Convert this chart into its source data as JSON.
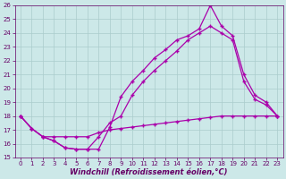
{
  "xlabel": "Windchill (Refroidissement éolien,°C)",
  "xlim": [
    -0.5,
    23.5
  ],
  "ylim": [
    15,
    26
  ],
  "xticks": [
    0,
    1,
    2,
    3,
    4,
    5,
    6,
    7,
    8,
    9,
    10,
    11,
    12,
    13,
    14,
    15,
    16,
    17,
    18,
    19,
    20,
    21,
    22,
    23
  ],
  "yticks": [
    15,
    16,
    17,
    18,
    19,
    20,
    21,
    22,
    23,
    24,
    25,
    26
  ],
  "background_color": "#cce8e8",
  "grid_color": "#aacccc",
  "line_color": "#aa00aa",
  "line1_x": [
    0,
    1,
    2,
    3,
    4,
    5,
    6,
    7,
    8,
    9,
    10,
    11,
    12,
    13,
    14,
    15,
    16,
    17,
    18,
    19,
    20,
    21,
    22,
    23
  ],
  "line1_y": [
    18.0,
    17.1,
    16.5,
    16.2,
    15.7,
    15.6,
    15.6,
    15.6,
    17.2,
    19.4,
    20.5,
    21.3,
    22.2,
    22.8,
    23.5,
    23.8,
    24.3,
    26.0,
    24.5,
    23.8,
    21.0,
    19.5,
    19.0,
    18.0
  ],
  "line2_x": [
    0,
    1,
    2,
    3,
    4,
    5,
    6,
    7,
    8,
    9,
    10,
    11,
    12,
    13,
    14,
    15,
    16,
    17,
    18,
    19,
    20,
    21,
    22,
    23
  ],
  "line2_y": [
    18.0,
    17.1,
    16.5,
    16.2,
    15.7,
    15.6,
    15.6,
    16.5,
    17.5,
    18.0,
    19.5,
    20.5,
    21.3,
    22.0,
    22.7,
    23.5,
    24.0,
    24.5,
    24.0,
    23.5,
    20.5,
    19.2,
    18.8,
    18.0
  ],
  "line3_x": [
    0,
    1,
    2,
    3,
    4,
    5,
    6,
    7,
    8,
    9,
    10,
    11,
    12,
    13,
    14,
    15,
    16,
    17,
    18,
    19,
    20,
    21,
    22,
    23
  ],
  "line3_y": [
    18.0,
    17.1,
    16.5,
    16.5,
    16.5,
    16.5,
    16.5,
    16.8,
    17.0,
    17.1,
    17.2,
    17.3,
    17.4,
    17.5,
    17.6,
    17.7,
    17.8,
    17.9,
    18.0,
    18.0,
    18.0,
    18.0,
    18.0,
    18.0
  ]
}
